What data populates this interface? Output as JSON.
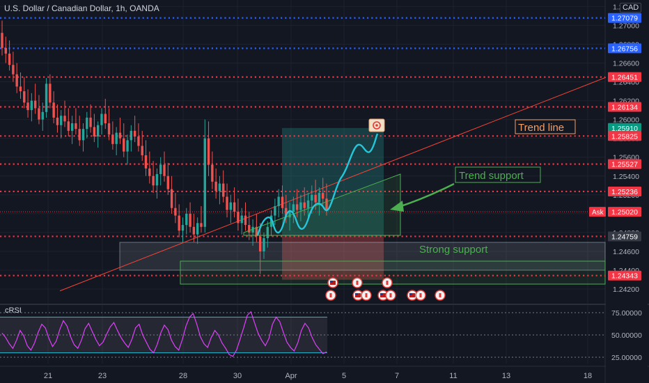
{
  "header": {
    "title": "U.S. Dollar / Canadian Dollar, 1h, OANDA",
    "currency": "CAD"
  },
  "colors": {
    "bg": "#131722",
    "up": "#26a69a",
    "down": "#ef5350",
    "red_level": "#f23645",
    "blue_level": "#2962ff",
    "accent_orange": "#f0a06a",
    "accent_green": "#4caf50",
    "teal_path": "#26c6da",
    "rsi_line": "#e040fb",
    "rsi_bands": "#22bcd4",
    "axis_text": "#b2b5be"
  },
  "chart_data": [
    {
      "type": "candlestick",
      "title": "U.S. Dollar / Canadian Dollar, 1h, OANDA",
      "y_unit": "CAD",
      "ylim": [
        1.2405,
        1.2725
      ],
      "y_ticks": [
        1.272,
        1.27,
        1.268,
        1.266,
        1.264,
        1.262,
        1.26,
        1.258,
        1.256,
        1.254,
        1.252,
        1.25,
        1.248,
        1.246,
        1.244,
        1.242
      ],
      "y_tick_labels": [
        "1.27200",
        "1.27000",
        "1.26800",
        "1.26600",
        "1.26400",
        "1.26200",
        "1.26000",
        "1.25800",
        "1.25600",
        "1.25400",
        "1.25200",
        "1.25000",
        "1.24800",
        "1.24600",
        "1.24400",
        "1.24200"
      ],
      "x_tick_labels": [
        "21",
        "23",
        "28",
        "30",
        "Apr",
        "5",
        "7",
        "11",
        "13",
        "18"
      ],
      "x_ticks": [
        69,
        147,
        263,
        341,
        418,
        494,
        570,
        651,
        727,
        844
      ],
      "price_levels_red": [
        1.26451,
        1.26134,
        1.25825,
        1.25527,
        1.25236,
        1.24759,
        1.24343
      ],
      "price_levels_blue": [
        1.27079,
        1.26756
      ],
      "price_labels": [
        {
          "value": 1.27079,
          "text": "1.27079",
          "color": "#2962ff"
        },
        {
          "value": 1.26756,
          "text": "1.26756",
          "color": "#2962ff"
        },
        {
          "value": 1.26451,
          "text": "1.26451",
          "color": "#f23645"
        },
        {
          "value": 1.26134,
          "text": "1.26134",
          "color": "#f23645"
        },
        {
          "value": 1.2591,
          "text": "1.25910",
          "color": "#089981"
        },
        {
          "value": 1.25825,
          "text": "1.25825",
          "color": "#f23645"
        },
        {
          "value": 1.25527,
          "text": "1.25527",
          "color": "#f23645"
        },
        {
          "value": 1.25236,
          "text": "1.25236",
          "color": "#f23645"
        },
        {
          "value": 1.2502,
          "text": "1.25020",
          "color": "#f23645"
        },
        {
          "value": 1.24759,
          "text": "1.24759",
          "color": "#363a45"
        },
        {
          "value": 1.24343,
          "text": "1.24343",
          "color": "#f23645"
        }
      ],
      "ask_label": "Ask",
      "ask_value": 1.2502,
      "trend_line": {
        "x": [
          86,
          871
        ],
        "y": [
          1.2418,
          1.2645
        ]
      },
      "candles": [
        [
          1.2692,
          1.2705,
          1.2668,
          1.2676
        ],
        [
          1.2676,
          1.2688,
          1.266,
          1.267
        ],
        [
          1.267,
          1.2684,
          1.2652,
          1.2658
        ],
        [
          1.2658,
          1.2672,
          1.264,
          1.2648
        ],
        [
          1.2648,
          1.266,
          1.2628,
          1.2635
        ],
        [
          1.2635,
          1.265,
          1.2622,
          1.263
        ],
        [
          1.263,
          1.2645,
          1.2612,
          1.2618
        ],
        [
          1.2618,
          1.2632,
          1.2602,
          1.261
        ],
        [
          1.261,
          1.2628,
          1.2598,
          1.262
        ],
        [
          1.262,
          1.2638,
          1.2606,
          1.2612
        ],
        [
          1.2612,
          1.2626,
          1.2595,
          1.26
        ],
        [
          1.26,
          1.2618,
          1.2588,
          1.2608
        ],
        [
          1.2608,
          1.2644,
          1.2602,
          1.2638
        ],
        [
          1.2638,
          1.2648,
          1.2612,
          1.2618
        ],
        [
          1.2618,
          1.263,
          1.2596,
          1.2602
        ],
        [
          1.2602,
          1.2616,
          1.2586,
          1.2594
        ],
        [
          1.2594,
          1.261,
          1.258,
          1.2604
        ],
        [
          1.2604,
          1.262,
          1.2592,
          1.2598
        ],
        [
          1.2598,
          1.2612,
          1.2582,
          1.2588
        ],
        [
          1.2588,
          1.2604,
          1.2574,
          1.2596
        ],
        [
          1.2596,
          1.2612,
          1.2584,
          1.259
        ],
        [
          1.259,
          1.2604,
          1.2572,
          1.2578
        ],
        [
          1.2578,
          1.2596,
          1.2566,
          1.259
        ],
        [
          1.259,
          1.2608,
          1.258,
          1.2602
        ],
        [
          1.2602,
          1.2616,
          1.2586,
          1.2592
        ],
        [
          1.2592,
          1.2606,
          1.2576,
          1.2582
        ],
        [
          1.2582,
          1.2598,
          1.257,
          1.2594
        ],
        [
          1.2594,
          1.2612,
          1.2584,
          1.2606
        ],
        [
          1.2606,
          1.2622,
          1.259,
          1.2596
        ],
        [
          1.2596,
          1.2612,
          1.2578,
          1.2584
        ],
        [
          1.2584,
          1.2598,
          1.2568,
          1.2574
        ],
        [
          1.2574,
          1.2592,
          1.2562,
          1.2586
        ],
        [
          1.2586,
          1.2602,
          1.2574,
          1.258
        ],
        [
          1.258,
          1.2596,
          1.256,
          1.2566
        ],
        [
          1.2566,
          1.2584,
          1.2552,
          1.2578
        ],
        [
          1.2578,
          1.2594,
          1.2566,
          1.2588
        ],
        [
          1.2588,
          1.2604,
          1.2576,
          1.2582
        ],
        [
          1.2582,
          1.2596,
          1.2566,
          1.2572
        ],
        [
          1.2572,
          1.2588,
          1.2556,
          1.2562
        ],
        [
          1.2562,
          1.2578,
          1.254,
          1.2548
        ],
        [
          1.2548,
          1.2566,
          1.2532,
          1.254
        ],
        [
          1.254,
          1.2556,
          1.2522,
          1.253
        ],
        [
          1.253,
          1.2548,
          1.2516,
          1.2542
        ],
        [
          1.2542,
          1.256,
          1.253,
          1.2552
        ],
        [
          1.2552,
          1.2566,
          1.2534,
          1.254
        ],
        [
          1.254,
          1.2554,
          1.252,
          1.2526
        ],
        [
          1.2526,
          1.254,
          1.25,
          1.2506
        ],
        [
          1.2506,
          1.2522,
          1.249,
          1.2498
        ],
        [
          1.2498,
          1.251,
          1.2475,
          1.2482
        ],
        [
          1.2482,
          1.2496,
          1.247,
          1.2488
        ],
        [
          1.2488,
          1.2506,
          1.2478,
          1.25
        ],
        [
          1.25,
          1.2512,
          1.248,
          1.2486
        ],
        [
          1.2486,
          1.25,
          1.247,
          1.2478
        ],
        [
          1.2478,
          1.2496,
          1.2468,
          1.249
        ],
        [
          1.249,
          1.2508,
          1.248,
          1.2486
        ],
        [
          1.2486,
          1.26,
          1.248,
          1.258
        ],
        [
          1.258,
          1.2598,
          1.254,
          1.2552
        ],
        [
          1.2552,
          1.2566,
          1.2526,
          1.2534
        ],
        [
          1.2534,
          1.2548,
          1.2516,
          1.2524
        ],
        [
          1.2524,
          1.254,
          1.251,
          1.2532
        ],
        [
          1.2532,
          1.2546,
          1.2512,
          1.2518
        ],
        [
          1.2518,
          1.2532,
          1.2496,
          1.2504
        ],
        [
          1.2504,
          1.252,
          1.249,
          1.2512
        ],
        [
          1.2512,
          1.2528,
          1.2496,
          1.2502
        ],
        [
          1.2502,
          1.2516,
          1.2482,
          1.249
        ],
        [
          1.249,
          1.2506,
          1.2478,
          1.2498
        ],
        [
          1.2498,
          1.2512,
          1.2482,
          1.2488
        ],
        [
          1.2488,
          1.2502,
          1.2472,
          1.248
        ],
        [
          1.248,
          1.2494,
          1.2466,
          1.2486
        ],
        [
          1.2486,
          1.25,
          1.247,
          1.2476
        ],
        [
          1.2476,
          1.249,
          1.2436,
          1.246
        ],
        [
          1.246,
          1.248,
          1.2452,
          1.2474
        ],
        [
          1.2474,
          1.2492,
          1.2464,
          1.2486
        ],
        [
          1.2486,
          1.2504,
          1.2476,
          1.2498
        ],
        [
          1.2498,
          1.2516,
          1.2488,
          1.2508
        ],
        [
          1.2508,
          1.2526,
          1.2496,
          1.2518
        ],
        [
          1.2518,
          1.253,
          1.25,
          1.2506
        ],
        [
          1.2506,
          1.252,
          1.249,
          1.2496
        ],
        [
          1.2496,
          1.2512,
          1.2482,
          1.2502
        ],
        [
          1.2502,
          1.2518,
          1.249,
          1.251
        ],
        [
          1.251,
          1.2526,
          1.2496,
          1.2504
        ],
        [
          1.2504,
          1.252,
          1.2492,
          1.2512
        ],
        [
          1.2512,
          1.2528,
          1.2498,
          1.2506
        ],
        [
          1.2506,
          1.2522,
          1.2494,
          1.2514
        ],
        [
          1.2514,
          1.253,
          1.25,
          1.252
        ],
        [
          1.252,
          1.2536,
          1.2504,
          1.2512
        ],
        [
          1.2512,
          1.2528,
          1.2498,
          1.2522
        ],
        [
          1.2522,
          1.2538,
          1.2508,
          1.2516
        ],
        [
          1.2516,
          1.2532,
          1.2498,
          1.2504
        ]
      ]
    },
    {
      "type": "line",
      "title": "cRSI",
      "ylim": [
        18,
        82
      ],
      "y_ticks": [
        75,
        50,
        25
      ],
      "y_tick_labels": [
        "75.00000",
        "50.00000",
        "25.00000"
      ],
      "bands": [
        70,
        30
      ],
      "values": [
        52,
        47,
        40,
        35,
        44,
        55,
        49,
        38,
        33,
        41,
        53,
        62,
        58,
        46,
        37,
        43,
        56,
        66,
        60,
        48,
        39,
        35,
        44,
        57,
        63,
        54,
        45,
        38,
        42,
        51,
        59,
        64,
        55,
        47,
        41,
        36,
        45,
        58,
        62,
        50,
        42,
        34,
        30,
        39,
        52,
        61,
        56,
        44,
        37,
        33,
        45,
        60,
        70,
        74,
        62,
        48,
        40,
        36,
        47,
        55,
        50,
        41,
        35,
        28,
        26,
        33,
        45,
        58,
        72,
        76,
        64,
        52,
        44,
        38,
        46,
        62,
        70,
        65,
        53,
        42,
        36,
        32,
        41,
        55,
        63,
        58,
        47,
        39,
        34,
        29,
        31
      ]
    }
  ],
  "annotations": {
    "trend_line": "Trend line",
    "trend_support": "Trend support",
    "strong_support": "Strong support"
  }
}
